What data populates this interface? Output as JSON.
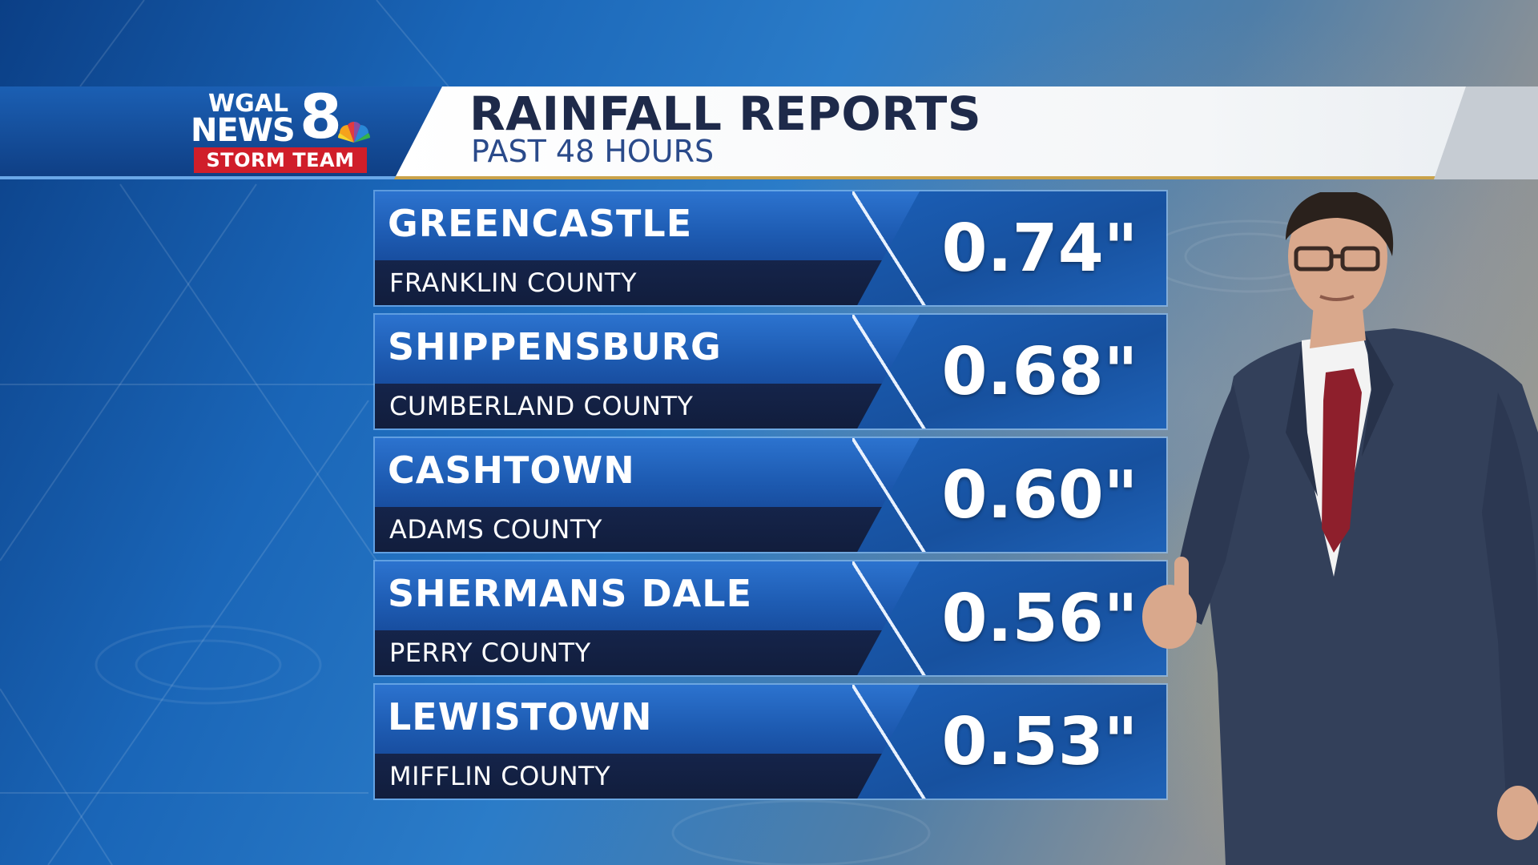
{
  "logo": {
    "station": "WGAL",
    "news": "NEWS",
    "channel": "8",
    "team": "STORM TEAM"
  },
  "header": {
    "title": "RAINFALL REPORTS",
    "subtitle": "PAST 48 HOURS"
  },
  "reports": [
    {
      "town": "GREENCASTLE",
      "county": "FRANKLIN COUNTY",
      "amount": "0.74\""
    },
    {
      "town": "SHIPPENSBURG",
      "county": "CUMBERLAND COUNTY",
      "amount": "0.68\""
    },
    {
      "town": "CASHTOWN",
      "county": "ADAMS COUNTY",
      "amount": "0.60\""
    },
    {
      "town": "SHERMANS DALE",
      "county": "PERRY COUNTY",
      "amount": "0.56\""
    },
    {
      "town": "LEWISTOWN",
      "county": "MIFFLIN COUNTY",
      "amount": "0.53\""
    }
  ],
  "colors": {
    "banner_blue": "#1b5fb3",
    "storm_team_red": "#d01e2a",
    "title_navy": "#1e2a4a",
    "row_blue": "#2c73cf",
    "row_dark": "#15244a"
  }
}
